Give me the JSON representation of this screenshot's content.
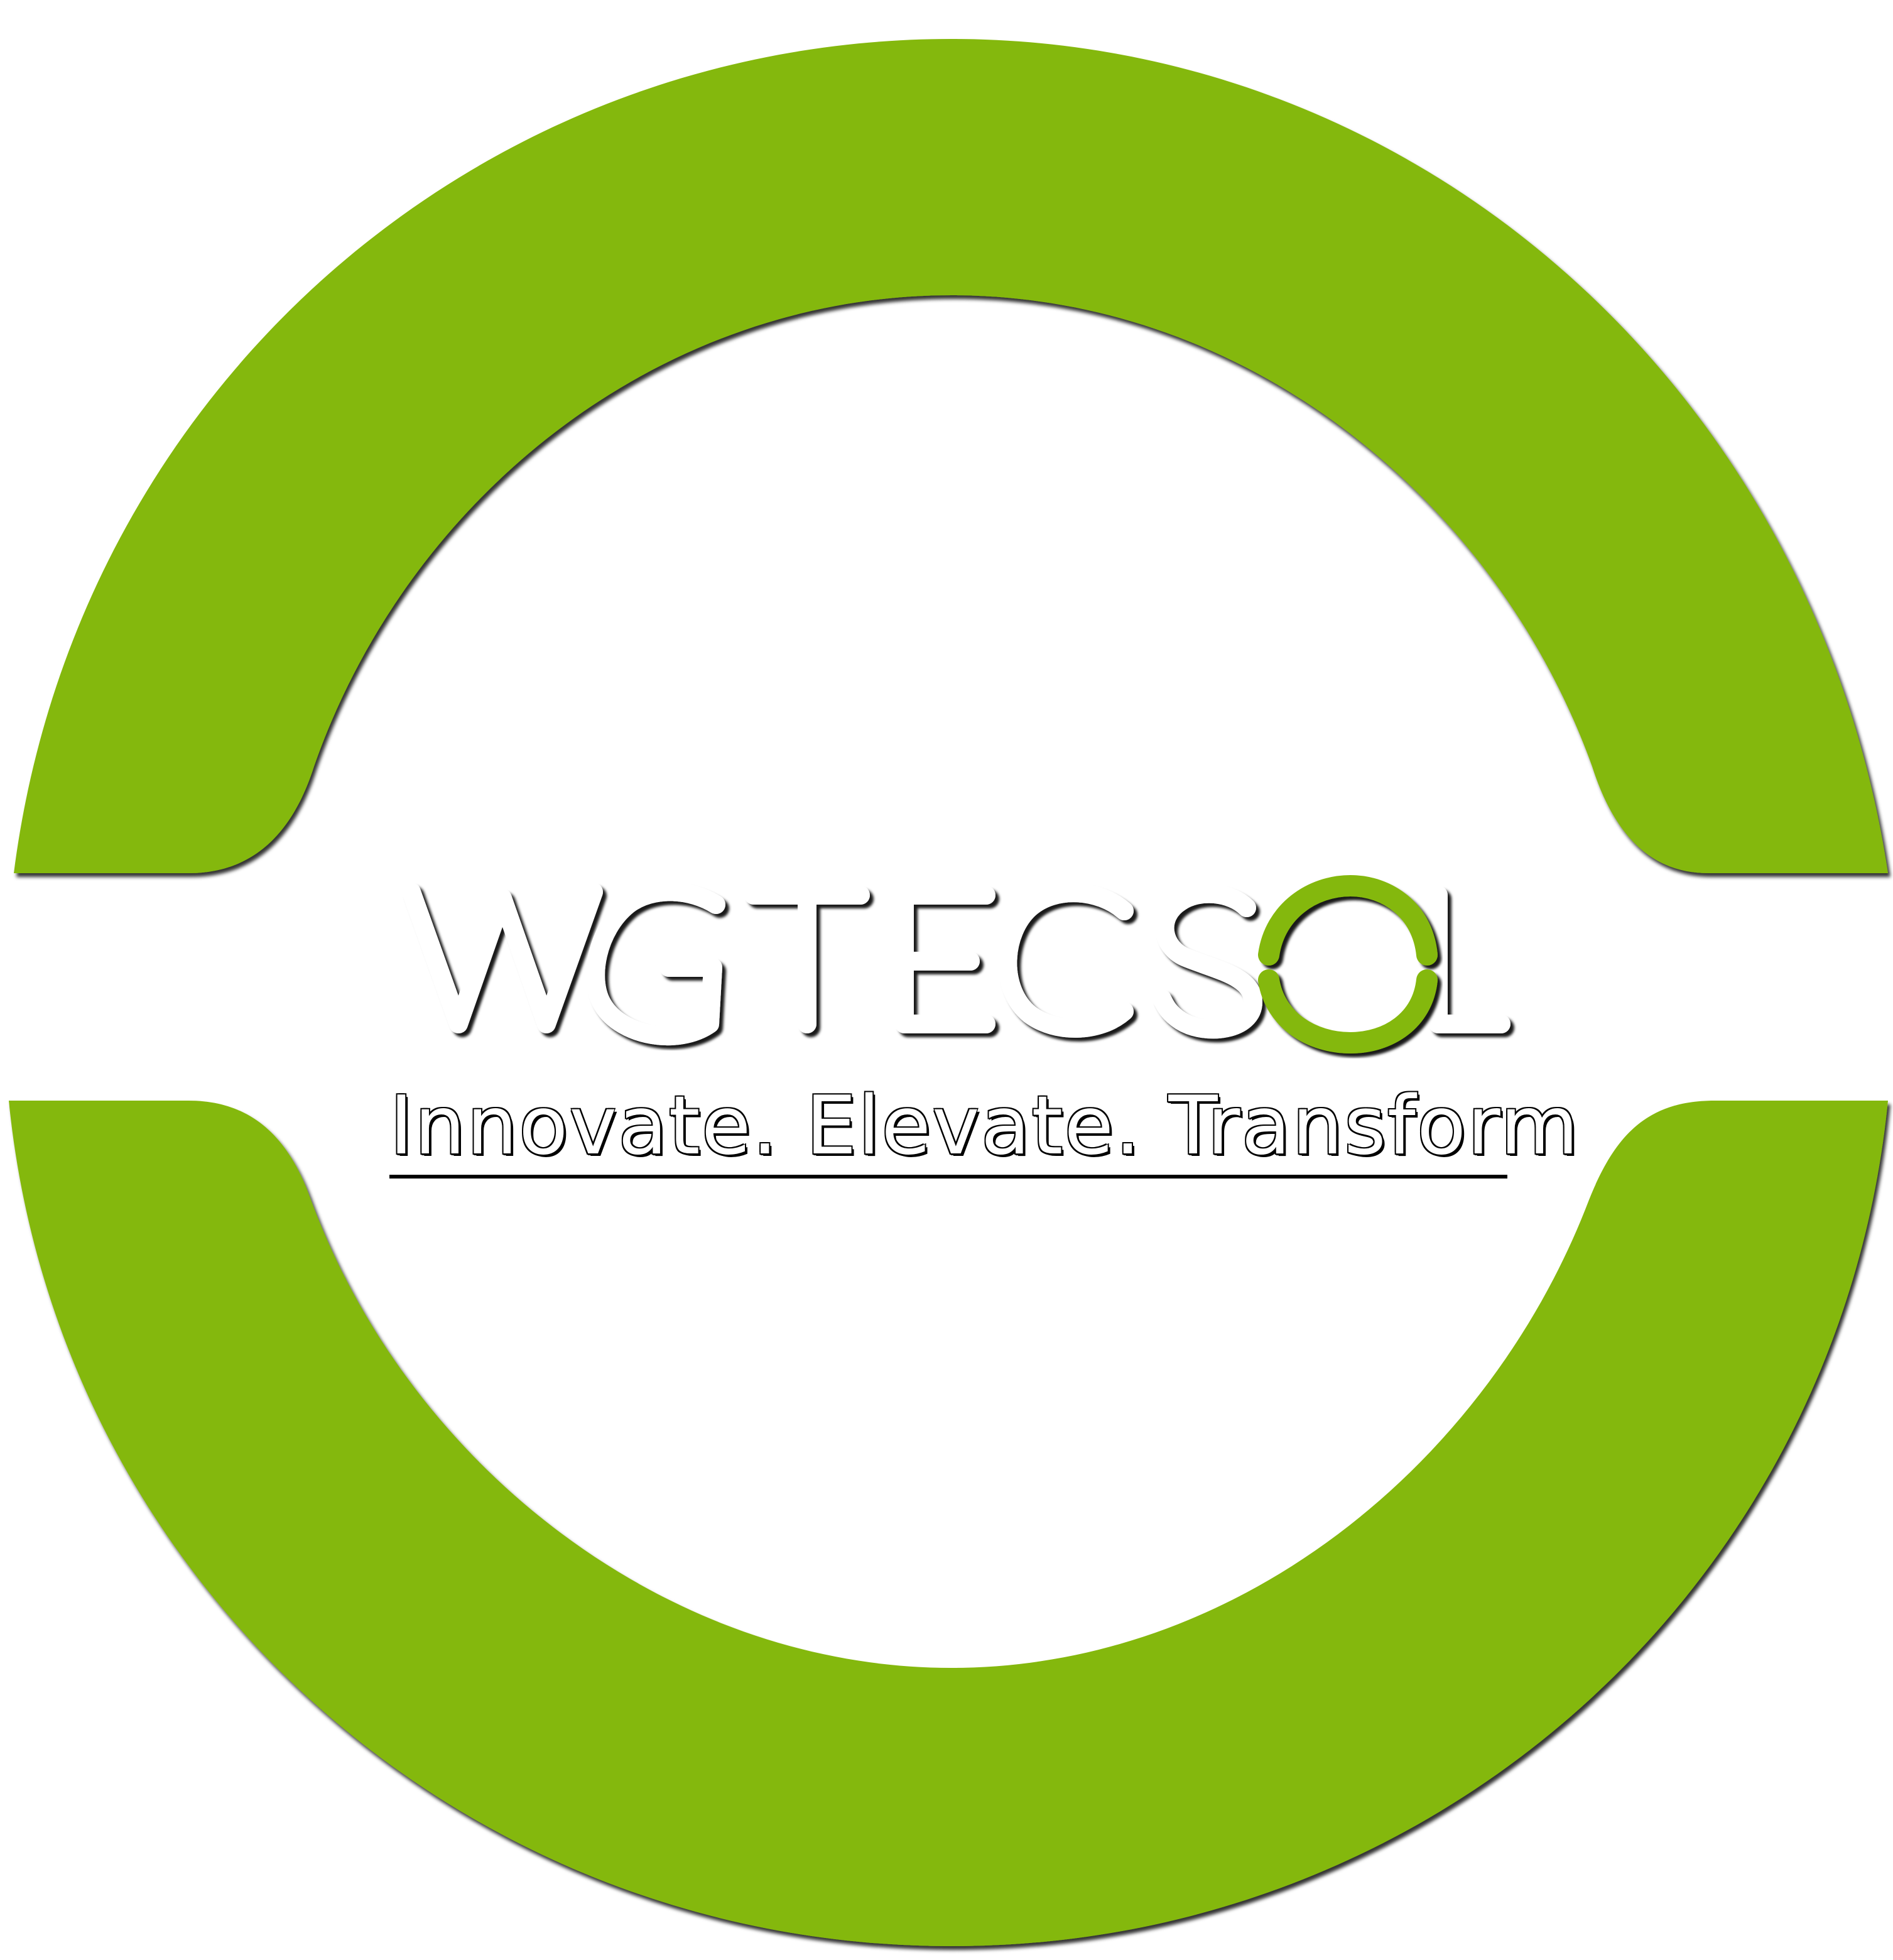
{
  "brand": {
    "name": "WGTECSOL",
    "tagline": "Innovate. Elevate. Transform"
  },
  "colors": {
    "ring": "#84b80a",
    "ring_shadow": "#1a2a00",
    "letters": "#ffffff",
    "accent_o": "#84b80a",
    "background": "#ffffff"
  }
}
